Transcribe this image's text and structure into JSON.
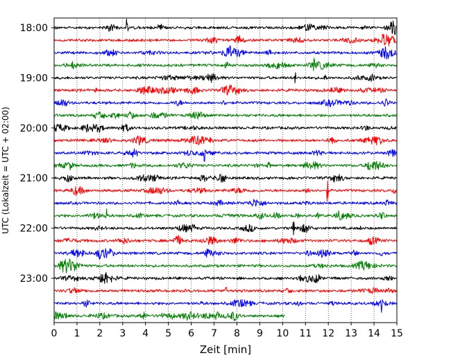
{
  "chart_data": {
    "type": "line",
    "xlabel": "Zeit  [min]",
    "ylabel": "UTC (Lokalzeit = UTC + 02:00)",
    "xlim": [
      0,
      15
    ],
    "x_ticks": [
      "0",
      "1",
      "2",
      "3",
      "4",
      "5",
      "6",
      "7",
      "8",
      "9",
      "10",
      "11",
      "12",
      "13",
      "14",
      "15"
    ],
    "y_ticks": [
      "18:00",
      "19:00",
      "20:00",
      "21:00",
      "22:00",
      "23:00"
    ],
    "grid": "vertical-dotted",
    "trace_interval_min": 15,
    "series_colors": [
      "#000000",
      "#ff0000",
      "#0000ff",
      "#008000"
    ],
    "traces": [
      {
        "start": "18:00",
        "color": "#000000",
        "x_end": 15
      },
      {
        "start": "18:15",
        "color": "#ff0000",
        "x_end": 15
      },
      {
        "start": "18:30",
        "color": "#0000ff",
        "x_end": 15
      },
      {
        "start": "18:45",
        "color": "#008000",
        "x_end": 15
      },
      {
        "start": "19:00",
        "color": "#000000",
        "x_end": 15
      },
      {
        "start": "19:15",
        "color": "#ff0000",
        "x_end": 15
      },
      {
        "start": "19:30",
        "color": "#0000ff",
        "x_end": 15
      },
      {
        "start": "19:45",
        "color": "#008000",
        "x_end": 15
      },
      {
        "start": "20:00",
        "color": "#000000",
        "x_end": 15
      },
      {
        "start": "20:15",
        "color": "#ff0000",
        "x_end": 15
      },
      {
        "start": "20:30",
        "color": "#0000ff",
        "x_end": 15
      },
      {
        "start": "20:45",
        "color": "#008000",
        "x_end": 15
      },
      {
        "start": "21:00",
        "color": "#000000",
        "x_end": 15
      },
      {
        "start": "21:15",
        "color": "#ff0000",
        "x_end": 15
      },
      {
        "start": "21:30",
        "color": "#0000ff",
        "x_end": 15
      },
      {
        "start": "21:45",
        "color": "#008000",
        "x_end": 15
      },
      {
        "start": "22:00",
        "color": "#000000",
        "x_end": 15
      },
      {
        "start": "22:15",
        "color": "#ff0000",
        "x_end": 15
      },
      {
        "start": "22:30",
        "color": "#0000ff",
        "x_end": 15
      },
      {
        "start": "22:45",
        "color": "#008000",
        "x_end": 15
      },
      {
        "start": "23:00",
        "color": "#000000",
        "x_end": 15
      },
      {
        "start": "23:15",
        "color": "#ff0000",
        "x_end": 15
      },
      {
        "start": "23:30",
        "color": "#0000ff",
        "x_end": 15
      },
      {
        "start": "23:45",
        "color": "#008000",
        "x_end": 10.1
      }
    ]
  }
}
